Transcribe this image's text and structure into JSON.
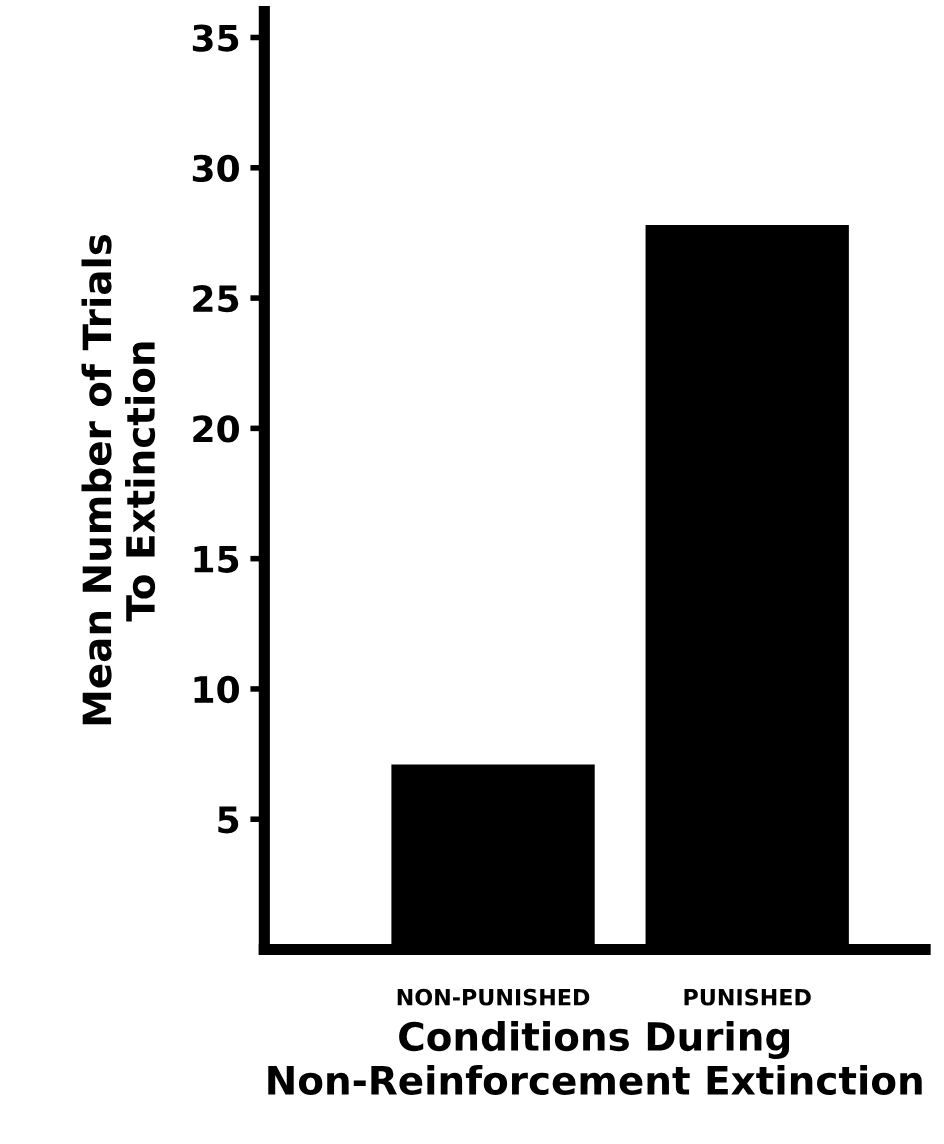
{
  "chart_data": {
    "type": "bar",
    "categories": [
      "NON-PUNISHED",
      "PUNISHED"
    ],
    "values": [
      7.1,
      27.8
    ],
    "color": "#000000",
    "xlabel": "Conditions During\nNon-Reinforcement Extinction",
    "ylabel": "Mean Number of Trials\nTo Extinction",
    "ylim": [
      0,
      36
    ],
    "yticks": [
      5,
      10,
      15,
      20,
      25,
      30,
      35
    ],
    "grid": false
  }
}
